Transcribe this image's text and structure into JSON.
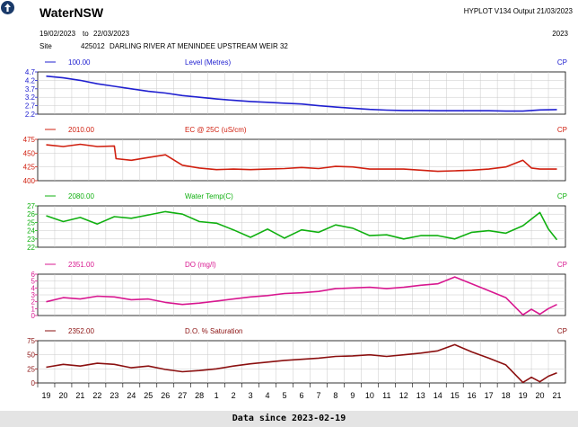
{
  "header": {
    "app_title": "WaterNSW",
    "version_info": "HYPLOT V134  Output 21/03/2023",
    "date_from": "19/02/2023",
    "date_to_sep": "to",
    "date_to": "22/03/2023",
    "year": "2023",
    "site_label": "Site",
    "site_number": "425012",
    "site_name": "DARLING RIVER AT MENINDEE UPSTREAM WEIR 32"
  },
  "footer": {
    "text": "Data since 2023-02-19"
  },
  "colors": {
    "level": "#2020d0",
    "ec": "#d02010",
    "temp": "#10b010",
    "do": "#d81890",
    "sat": "#8b1010",
    "logo": "#1a3a6a"
  },
  "icons": {
    "logo": "arrow-up-circle-icon"
  },
  "chart_data": {
    "type": "line",
    "x_tick_labels": [
      "19",
      "20",
      "21",
      "22",
      "23",
      "24",
      "25",
      "26",
      "27",
      "28",
      "1",
      "2",
      "3",
      "4",
      "5",
      "6",
      "7",
      "8",
      "9",
      "10",
      "11",
      "12",
      "13",
      "14",
      "15",
      "16",
      "17",
      "18",
      "19",
      "20",
      "21"
    ],
    "x_start": "2023-02-19",
    "x_end": "2023-03-22",
    "panels": [
      {
        "name": "level",
        "code": "100.00",
        "title": "Level (Metres)",
        "cp": "CP",
        "color_key": "level",
        "ylim": [
          2.2,
          4.7
        ],
        "ytick_labels": [
          "4.7",
          "4.2",
          "3.7",
          "3.2",
          "2.7",
          "2.2"
        ],
        "ytick_values": [
          4.7,
          4.2,
          3.7,
          3.2,
          2.7,
          2.2
        ],
        "x": [
          0,
          1,
          2,
          3,
          4,
          5,
          6,
          7,
          8,
          9,
          10,
          11,
          12,
          13,
          14,
          15,
          16,
          17,
          18,
          19,
          20,
          21,
          22,
          23,
          24,
          25,
          26,
          27,
          28,
          29,
          30
        ],
        "values": [
          4.45,
          4.35,
          4.2,
          4.0,
          3.85,
          3.7,
          3.55,
          3.45,
          3.3,
          3.2,
          3.1,
          3.02,
          2.95,
          2.9,
          2.85,
          2.8,
          2.7,
          2.62,
          2.55,
          2.48,
          2.44,
          2.42,
          2.42,
          2.4,
          2.4,
          2.4,
          2.4,
          2.38,
          2.38,
          2.45,
          2.47
        ]
      },
      {
        "name": "ec",
        "code": "2010.00",
        "title": "EC @ 25C (uS/cm)",
        "cp": "CP",
        "color_key": "ec",
        "ylim": [
          400,
          475
        ],
        "ytick_labels": [
          "475",
          "450",
          "425",
          "400"
        ],
        "ytick_values": [
          475,
          450,
          425,
          400
        ],
        "x": [
          0,
          1,
          2,
          3,
          4,
          4.1,
          5,
          6,
          7,
          8,
          9,
          10,
          11,
          12,
          13,
          14,
          15,
          16,
          17,
          18,
          19,
          20,
          21,
          22,
          23,
          24,
          25,
          26,
          27,
          28,
          28.5,
          29,
          30
        ],
        "values": [
          465,
          462,
          466,
          462,
          463,
          440,
          437,
          442,
          447,
          428,
          423,
          420,
          421,
          420,
          421,
          422,
          424,
          422,
          426,
          425,
          421,
          421,
          421,
          419,
          417,
          418,
          419,
          421,
          425,
          437,
          423,
          421,
          421
        ]
      },
      {
        "name": "temp",
        "code": "2080.00",
        "title": "Water Temp(C)",
        "cp": "CP",
        "color_key": "temp",
        "ylim": [
          22,
          27
        ],
        "ytick_labels": [
          "27",
          "26",
          "25",
          "24",
          "23",
          "22"
        ],
        "ytick_values": [
          27,
          26,
          25,
          24,
          23,
          22
        ],
        "x": [
          0,
          1,
          2,
          3,
          4,
          5,
          6,
          7,
          8,
          9,
          10,
          11,
          12,
          13,
          14,
          15,
          16,
          17,
          18,
          19,
          20,
          21,
          22,
          23,
          24,
          25,
          26,
          27,
          28,
          29,
          29.5,
          30
        ],
        "values": [
          25.8,
          25.1,
          25.6,
          24.8,
          25.7,
          25.5,
          25.9,
          26.3,
          26.0,
          25.1,
          24.9,
          24.1,
          23.2,
          24.2,
          23.1,
          24.1,
          23.8,
          24.7,
          24.3,
          23.4,
          23.5,
          23.0,
          23.4,
          23.4,
          23.0,
          23.8,
          24.0,
          23.7,
          24.6,
          26.2,
          24.2,
          22.9
        ]
      },
      {
        "name": "do",
        "code": "2351.00",
        "title": "DO (mg/l)",
        "cp": "CP",
        "color_key": "do",
        "ylim": [
          0,
          6
        ],
        "ytick_labels": [
          "6",
          "5",
          "4",
          "3",
          "2",
          "1",
          "0"
        ],
        "ytick_values": [
          6,
          5,
          4,
          3,
          2,
          1,
          0
        ],
        "x": [
          0,
          1,
          2,
          3,
          4,
          5,
          6,
          7,
          8,
          9,
          10,
          11,
          12,
          13,
          14,
          15,
          16,
          17,
          18,
          19,
          20,
          21,
          22,
          23,
          24,
          25,
          26,
          27,
          28,
          28.5,
          29,
          29.5,
          30
        ],
        "values": [
          2.0,
          2.6,
          2.4,
          2.8,
          2.7,
          2.3,
          2.4,
          1.9,
          1.6,
          1.8,
          2.1,
          2.4,
          2.7,
          2.9,
          3.2,
          3.3,
          3.5,
          3.9,
          4.0,
          4.1,
          3.9,
          4.1,
          4.4,
          4.6,
          5.6,
          4.6,
          3.6,
          2.6,
          0.1,
          0.9,
          0.2,
          1.0,
          1.6
        ]
      },
      {
        "name": "sat",
        "code": "2352.00",
        "title": "D.O. % Saturation",
        "cp": "CP",
        "color_key": "sat",
        "ylim": [
          0,
          75
        ],
        "ytick_labels": [
          "75",
          "50",
          "25",
          "0"
        ],
        "ytick_values": [
          75,
          50,
          25,
          0
        ],
        "x": [
          0,
          1,
          2,
          3,
          4,
          5,
          6,
          7,
          8,
          9,
          10,
          11,
          12,
          13,
          14,
          15,
          16,
          17,
          18,
          19,
          20,
          21,
          22,
          23,
          24,
          25,
          26,
          27,
          28,
          28.5,
          29,
          29.5,
          30
        ],
        "values": [
          28,
          33,
          30,
          35,
          33,
          27,
          30,
          24,
          20,
          22,
          25,
          30,
          34,
          37,
          40,
          42,
          44,
          47,
          48,
          50,
          47,
          50,
          53,
          57,
          68,
          55,
          44,
          32,
          1,
          10,
          2,
          12,
          18
        ]
      }
    ]
  }
}
